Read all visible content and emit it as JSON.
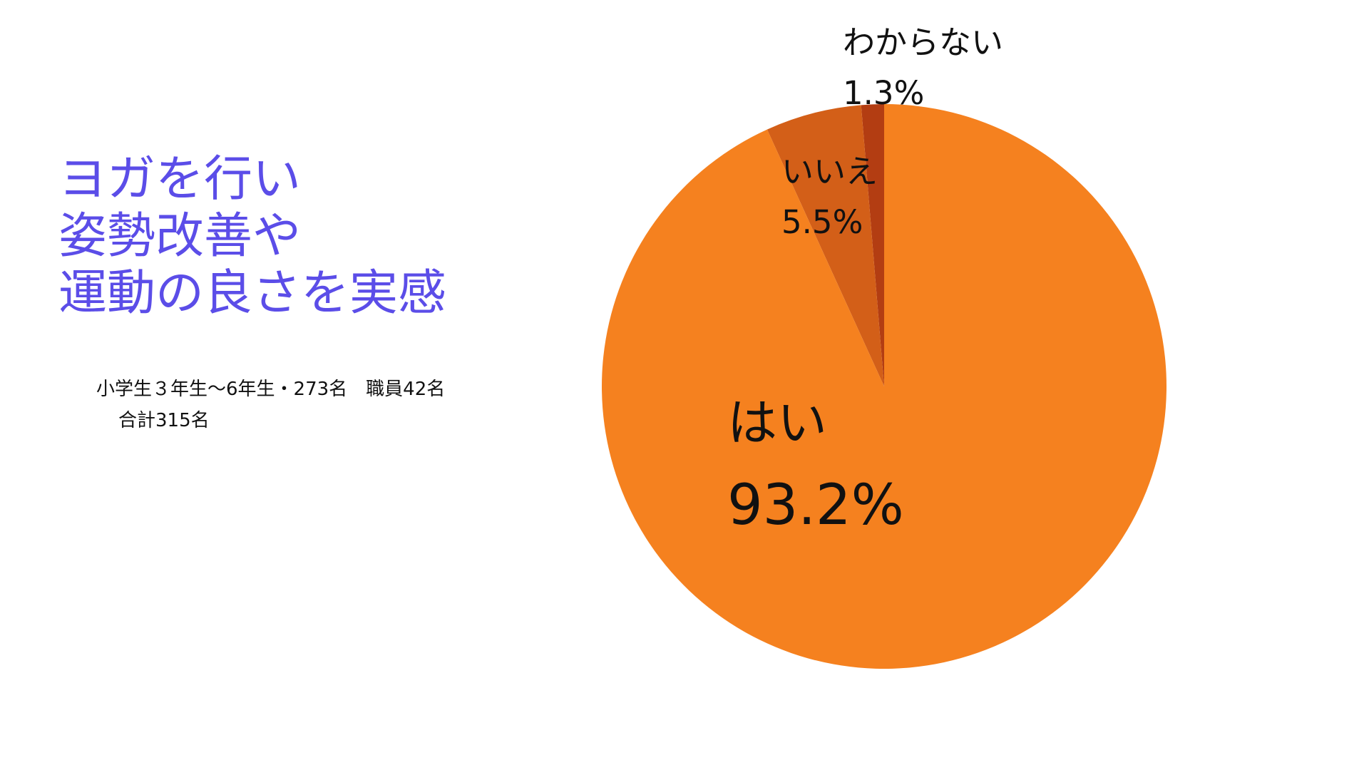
{
  "headline": {
    "lines": [
      "ヨガを行い",
      "姿勢改善や",
      "運動の良さを実感"
    ],
    "color": "#5b4de8"
  },
  "subtitle": {
    "line1": "小学生３年生～6年生・273名　職員42名",
    "line2": "合計315名"
  },
  "chart_data": {
    "type": "pie",
    "title": "",
    "start_angle_deg": 0,
    "direction": "clockwise",
    "slices": [
      {
        "label": "はい",
        "value": 93.2,
        "value_label": "93.2%",
        "color": "#f5811f"
      },
      {
        "label": "いいえ",
        "value": 5.5,
        "value_label": "5.5%",
        "color": "#d35f18"
      },
      {
        "label": "わからない",
        "value": 1.3,
        "value_label": "1.3%",
        "color": "#b33d12"
      }
    ]
  }
}
